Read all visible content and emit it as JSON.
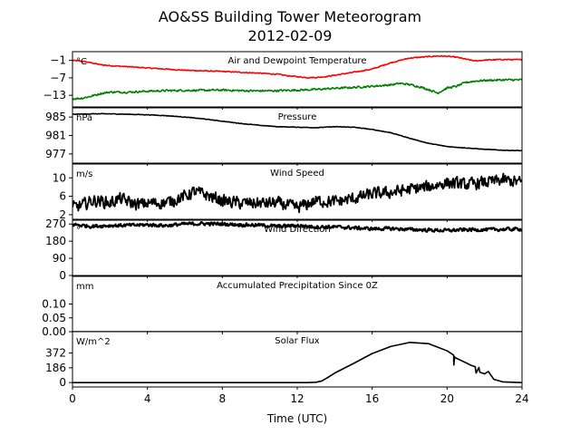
{
  "figure": {
    "title_line1": "AO&SS Building Tower Meteorogram",
    "title_line2": "2012-02-09",
    "xlabel": "Time (UTC)"
  },
  "chart_data": {
    "type": "line",
    "x_axis": {
      "label": "Time (UTC)",
      "range": [
        0,
        24
      ],
      "ticks": [
        0,
        4,
        8,
        12,
        16,
        20,
        24
      ]
    },
    "panels": [
      {
        "id": "temp",
        "title": "Air and Dewpoint Temperature",
        "unit": "°C",
        "ylim": [
          -17,
          2
        ],
        "yticks": [
          -1,
          -7,
          -13
        ],
        "ytick_labels": [
          "−1",
          "−7",
          "−13"
        ],
        "series": [
          {
            "color": "#ff0000",
            "noise": 0.15,
            "x": [
              0,
              0.5,
              1,
              1.5,
              2,
              3,
              4,
              5,
              6,
              7,
              8,
              9,
              10,
              11,
              11.5,
              12,
              12.5,
              13,
              13.5,
              14,
              15,
              16,
              17,
              18,
              19,
              19.5,
              20,
              20.5,
              21,
              21.5,
              22,
              23,
              24
            ],
            "y": [
              -1.0,
              -1.3,
              -1.8,
              -2.5,
              -2.8,
              -3.2,
              -3.6,
              -4.0,
              -4.4,
              -4.6,
              -4.8,
              -5.1,
              -5.4,
              -5.8,
              -6.3,
              -6.6,
              -6.9,
              -6.9,
              -6.6,
              -6.1,
              -5.1,
              -4.0,
              -1.8,
              -0.2,
              0.3,
              0.5,
              0.4,
              0.1,
              -0.6,
              -1.2,
              -0.9,
              -0.7,
              -0.8
            ]
          },
          {
            "color": "#008000",
            "noise": 0.3,
            "x": [
              0,
              0.5,
              1,
              1.5,
              2,
              3,
              4,
              5,
              6,
              7,
              8,
              9,
              10,
              11,
              12,
              13,
              14,
              15,
              16,
              17,
              17.5,
              18,
              18.5,
              19,
              19.5,
              20,
              20.5,
              21,
              21.5,
              22,
              23,
              24
            ],
            "y": [
              -14.2,
              -14.0,
              -13.3,
              -12.4,
              -11.9,
              -11.9,
              -11.6,
              -11.4,
              -11.3,
              -11.3,
              -11.2,
              -11.4,
              -11.5,
              -11.4,
              -11.2,
              -11.0,
              -10.6,
              -10.3,
              -9.9,
              -9.4,
              -8.9,
              -9.3,
              -10.0,
              -11.0,
              -12.2,
              -10.5,
              -9.9,
              -8.6,
              -8.1,
              -7.9,
              -7.7,
              -7.7
            ]
          }
        ]
      },
      {
        "id": "pressure",
        "title": "Pressure",
        "unit": "hPa",
        "ylim": [
          975,
          987
        ],
        "yticks": [
          985,
          981,
          977
        ],
        "ytick_labels": [
          "985",
          "981",
          "977"
        ],
        "series": [
          {
            "color": "#000000",
            "noise": 0.05,
            "x": [
              0,
              1,
              2,
              3,
              4,
              5,
              6,
              7,
              8,
              9,
              10,
              11,
              12,
              13,
              14,
              15,
              16,
              17,
              18,
              19,
              20,
              21,
              22,
              23,
              24
            ],
            "y": [
              985.6,
              985.7,
              985.7,
              985.6,
              985.5,
              985.3,
              985.0,
              984.6,
              984.1,
              983.6,
              983.2,
              982.9,
              982.8,
              982.7,
              982.9,
              982.8,
              982.3,
              981.6,
              980.4,
              979.3,
              978.6,
              978.3,
              978.0,
              977.8,
              977.7
            ]
          }
        ]
      },
      {
        "id": "wind_speed",
        "title": "Wind Speed",
        "unit": "m/s",
        "ylim": [
          1,
          13
        ],
        "yticks": [
          10,
          6,
          2
        ],
        "ytick_labels": [
          "10",
          "6",
          "2"
        ],
        "series": [
          {
            "color": "#000000",
            "noise": 1.2,
            "x": [
              0,
              0.5,
              1,
              1.5,
              2,
              2.5,
              3,
              3.5,
              4,
              5,
              6,
              6.5,
              7,
              8,
              9,
              10,
              11,
              12,
              13,
              14,
              15,
              16,
              17,
              18,
              19,
              20,
              21,
              22,
              23,
              24
            ],
            "y": [
              3.5,
              4.0,
              5.0,
              5.0,
              4.5,
              5.5,
              4.8,
              4.2,
              4.5,
              4.6,
              6.0,
              7.0,
              6.5,
              5.0,
              4.5,
              4.5,
              4.5,
              3.5,
              5.0,
              4.8,
              5.5,
              6.5,
              6.8,
              7.5,
              8.0,
              9.0,
              8.5,
              9.0,
              9.5,
              9.0
            ]
          }
        ]
      },
      {
        "id": "wind_dir",
        "title": "Wind Direction",
        "unit": "°",
        "ylim": [
          0,
          290
        ],
        "yticks": [
          270,
          180,
          90,
          0
        ],
        "ytick_labels": [
          "270",
          "180",
          "90",
          "0"
        ],
        "series": [
          {
            "color": "#000000",
            "noise": 8,
            "x": [
              0,
              1,
              2,
              3,
              4,
              5,
              6,
              7,
              8,
              9,
              10,
              11,
              12,
              13,
              14,
              15,
              16,
              17,
              18,
              19,
              20,
              21,
              22,
              23,
              24
            ],
            "y": [
              268,
              258,
              262,
              263,
              266,
              262,
              270,
              272,
              270,
              266,
              264,
              258,
              262,
              255,
              255,
              250,
              245,
              246,
              242,
              238,
              236,
              240,
              240,
              242,
              244
            ]
          }
        ]
      },
      {
        "id": "precip",
        "title": "Accumulated Precipitation Since 0Z",
        "unit": "mm",
        "ylim": [
          0,
          0.2
        ],
        "yticks": [
          0.1,
          0.05,
          0.0
        ],
        "ytick_labels": [
          "0.10",
          "0.05",
          "0.00"
        ],
        "series": [
          {
            "color": "#000000",
            "noise": 0,
            "x": [
              0,
              24
            ],
            "y": [
              0,
              0
            ]
          }
        ]
      },
      {
        "id": "solar",
        "title": "Solar Flux",
        "unit": "W/m^2",
        "ylim": [
          -55,
          640
        ],
        "yticks": [
          372,
          186,
          0
        ],
        "ytick_labels": [
          "372",
          "186",
          "0"
        ],
        "series": [
          {
            "color": "#000000",
            "noise": 0,
            "x": [
              0,
              12.5,
              13,
              13.3,
              13.6,
              14,
              15,
              16,
              17,
              18,
              19,
              20,
              20.35,
              20.36,
              20.4,
              20.42,
              21,
              21.3,
              21.5,
              21.55,
              21.7,
              21.75,
              22,
              22.2,
              22.5,
              23,
              24
            ],
            "y": [
              0,
              0,
              4,
              20,
              60,
              120,
              240,
              365,
              455,
              505,
              490,
              400,
              345,
              220,
              325,
              315,
              250,
              215,
              200,
              120,
              190,
              130,
              110,
              140,
              40,
              8,
              0
            ]
          }
        ]
      }
    ]
  }
}
